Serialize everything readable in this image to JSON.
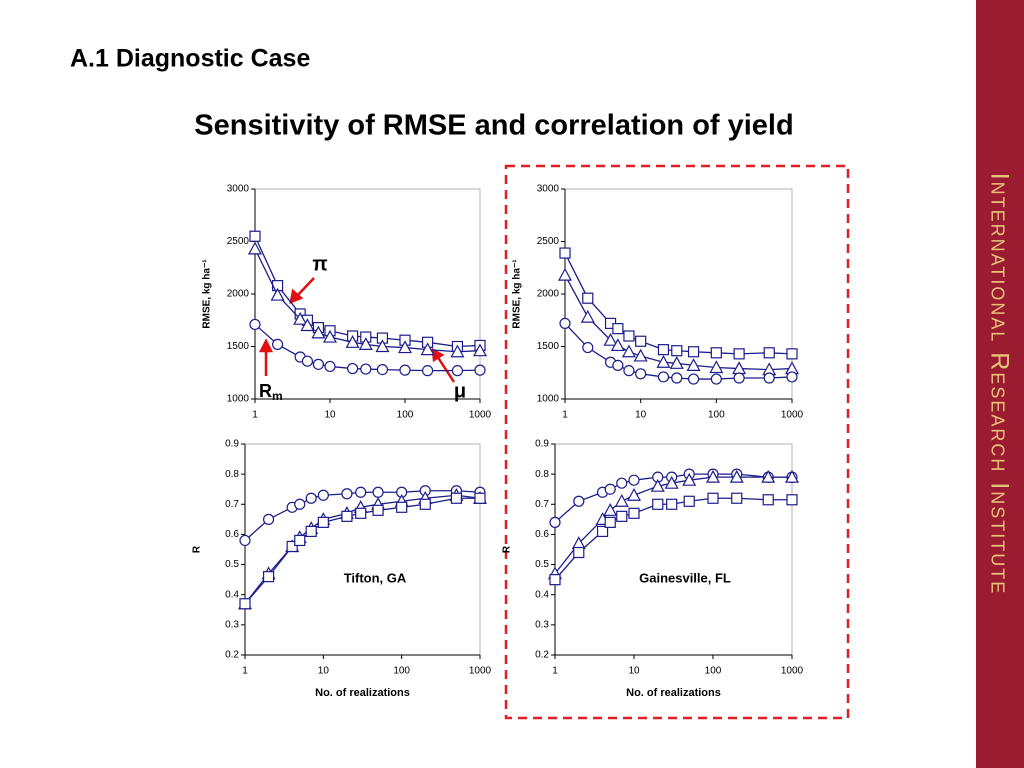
{
  "header": {
    "section": "A.1 Diagnostic Case",
    "title": "Sensitivity of RMSE and correlation of yield",
    "sidebar": "International Research Institute"
  },
  "chart_data": [
    {
      "type": "line",
      "xscale": "log",
      "ylabel": "RMSE, kg ha⁻¹",
      "xlim": [
        1,
        1000
      ],
      "xticks": [
        1,
        10,
        100,
        1000
      ],
      "ylim": [
        1000,
        3000
      ],
      "yticks": [
        1000,
        1500,
        2000,
        2500,
        3000
      ],
      "x": [
        1,
        2,
        4,
        5,
        7,
        10,
        20,
        30,
        50,
        100,
        200,
        500,
        1000
      ],
      "series": [
        {
          "marker": "square",
          "color": "#1c1c8c",
          "values": [
            2550,
            2080,
            1810,
            1750,
            1680,
            1650,
            1600,
            1590,
            1580,
            1560,
            1540,
            1500,
            1510
          ]
        },
        {
          "marker": "triangle",
          "color": "#1c1c8c",
          "values": [
            2430,
            1990,
            1760,
            1700,
            1630,
            1590,
            1540,
            1520,
            1500,
            1490,
            1470,
            1450,
            1460
          ]
        },
        {
          "marker": "circle",
          "color": "#1c1c8c",
          "values": [
            1710,
            1520,
            1400,
            1360,
            1330,
            1310,
            1290,
            1285,
            1280,
            1275,
            1270,
            1270,
            1275
          ]
        }
      ],
      "annotations": [
        {
          "text": "π"
        },
        {
          "text": "μ"
        },
        {
          "text": "R",
          "sub": "m"
        }
      ]
    },
    {
      "type": "line",
      "xscale": "log",
      "ylabel": "RMSE, kg ha⁻¹",
      "xlim": [
        1,
        1000
      ],
      "xticks": [
        1,
        10,
        100,
        1000
      ],
      "ylim": [
        1000,
        3000
      ],
      "yticks": [
        1000,
        1500,
        2000,
        2500,
        3000
      ],
      "x": [
        1,
        2,
        4,
        5,
        7,
        10,
        20,
        30,
        50,
        100,
        200,
        500,
        1000
      ],
      "series": [
        {
          "marker": "square",
          "color": "#1c1c8c",
          "values": [
            2390,
            1960,
            1720,
            1670,
            1600,
            1550,
            1470,
            1460,
            1450,
            1440,
            1430,
            1440,
            1430
          ]
        },
        {
          "marker": "triangle",
          "color": "#1c1c8c",
          "values": [
            2180,
            1780,
            1560,
            1510,
            1450,
            1410,
            1350,
            1340,
            1320,
            1300,
            1290,
            1280,
            1290
          ]
        },
        {
          "marker": "circle",
          "color": "#1c1c8c",
          "values": [
            1720,
            1490,
            1350,
            1320,
            1270,
            1240,
            1210,
            1200,
            1190,
            1190,
            1200,
            1200,
            1210
          ]
        }
      ]
    },
    {
      "type": "line",
      "xscale": "log",
      "ylabel": "R",
      "xlabel": "No. of realizations",
      "xlim": [
        1,
        1000
      ],
      "xticks": [
        1,
        10,
        100,
        1000
      ],
      "ylim": [
        0.2,
        0.9
      ],
      "yticks": [
        0.2,
        0.3,
        0.4,
        0.5,
        0.6,
        0.7,
        0.8,
        0.9
      ],
      "x": [
        1,
        2,
        4,
        5,
        7,
        10,
        20,
        30,
        50,
        100,
        200,
        500,
        1000
      ],
      "series": [
        {
          "marker": "circle",
          "color": "#1c1c8c",
          "values": [
            0.58,
            0.65,
            0.69,
            0.7,
            0.72,
            0.73,
            0.735,
            0.74,
            0.74,
            0.74,
            0.745,
            0.745,
            0.74
          ]
        },
        {
          "marker": "triangle",
          "color": "#1c1c8c",
          "values": [
            0.37,
            0.47,
            0.56,
            0.59,
            0.62,
            0.65,
            0.67,
            0.69,
            0.7,
            0.71,
            0.72,
            0.73,
            0.72
          ]
        },
        {
          "marker": "square",
          "color": "#1c1c8c",
          "values": [
            0.37,
            0.46,
            0.56,
            0.58,
            0.61,
            0.64,
            0.66,
            0.67,
            0.68,
            0.69,
            0.7,
            0.72,
            0.72
          ]
        }
      ],
      "annotations": [
        {
          "text": "Tifton, GA"
        }
      ]
    },
    {
      "type": "line",
      "xscale": "log",
      "ylabel": "R",
      "xlabel": "No. of realizations",
      "xlim": [
        1,
        1000
      ],
      "xticks": [
        1,
        10,
        100,
        1000
      ],
      "ylim": [
        0.2,
        0.9
      ],
      "yticks": [
        0.2,
        0.3,
        0.4,
        0.5,
        0.6,
        0.7,
        0.8,
        0.9
      ],
      "x": [
        1,
        2,
        4,
        5,
        7,
        10,
        20,
        30,
        50,
        100,
        200,
        500,
        1000
      ],
      "series": [
        {
          "marker": "circle",
          "color": "#1c1c8c",
          "values": [
            0.64,
            0.71,
            0.74,
            0.75,
            0.77,
            0.78,
            0.79,
            0.79,
            0.8,
            0.8,
            0.8,
            0.79,
            0.79
          ]
        },
        {
          "marker": "triangle",
          "color": "#1c1c8c",
          "values": [
            0.47,
            0.57,
            0.65,
            0.68,
            0.71,
            0.73,
            0.76,
            0.77,
            0.78,
            0.79,
            0.79,
            0.79,
            0.79
          ]
        },
        {
          "marker": "square",
          "color": "#1c1c8c",
          "values": [
            0.45,
            0.54,
            0.61,
            0.64,
            0.66,
            0.67,
            0.7,
            0.7,
            0.71,
            0.72,
            0.72,
            0.715,
            0.715
          ]
        }
      ],
      "annotations": [
        {
          "text": "Gainesville, FL"
        }
      ]
    }
  ]
}
